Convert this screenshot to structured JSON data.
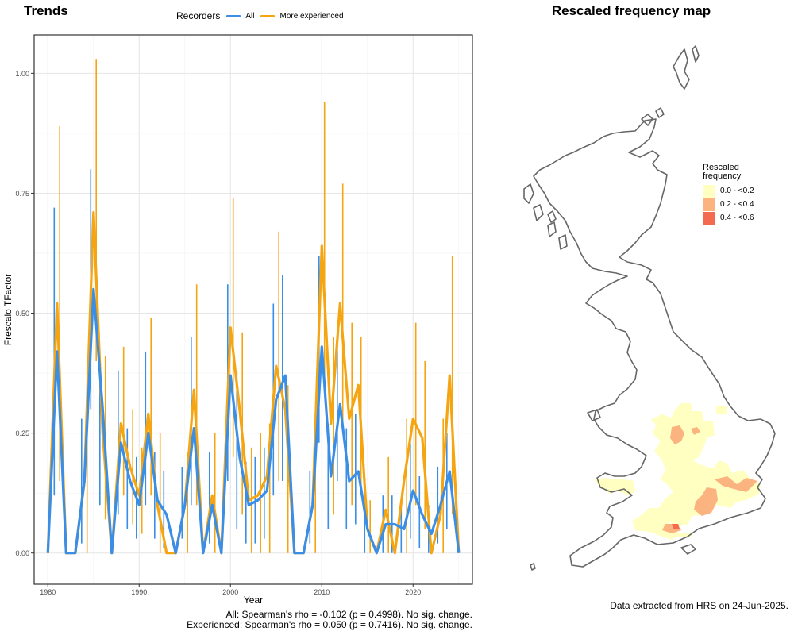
{
  "panel_title": "Trends",
  "map_title": "Rescaled frequency map",
  "legend": {
    "title": "Recorders",
    "items": [
      {
        "label": "All",
        "color": "#3a8ee6"
      },
      {
        "label": "More experienced",
        "color": "#f5a511"
      }
    ]
  },
  "chart_data": {
    "type": "line",
    "xlabel": "Year",
    "ylabel": "Frescalo TFactor",
    "xlim": [
      1978.5,
      1982.0
    ],
    "xticks": [
      1980,
      1990,
      2000,
      2010,
      2020
    ],
    "ylim": [
      -0.065,
      1.08
    ],
    "yticks": [
      0,
      0.25,
      0.5,
      0.75,
      1.0
    ],
    "ytick_labels": [
      "0.00",
      "0.25",
      "0.50",
      "0.75",
      "1.00"
    ],
    "grid": true,
    "series": [
      {
        "name": "All",
        "color": "#3a8ee6",
        "points": [
          {
            "x": 1980,
            "y": 0.0
          },
          {
            "x": 1981,
            "y": 0.42,
            "lo": 0.12,
            "hi": 0.72
          },
          {
            "x": 1982,
            "y": 0.0
          },
          {
            "x": 1983,
            "y": 0.0
          },
          {
            "x": 1984,
            "y": 0.15,
            "lo": 0.02,
            "hi": 0.28
          },
          {
            "x": 1985,
            "y": 0.55,
            "lo": 0.3,
            "hi": 0.8
          },
          {
            "x": 1986,
            "y": 0.3,
            "lo": 0.1,
            "hi": 0.41
          },
          {
            "x": 1987,
            "y": 0.0
          },
          {
            "x": 1988,
            "y": 0.23,
            "lo": 0.08,
            "hi": 0.38
          },
          {
            "x": 1989,
            "y": 0.15,
            "lo": 0.05,
            "hi": 0.26
          },
          {
            "x": 1990,
            "y": 0.1,
            "lo": 0.03,
            "hi": 0.2
          },
          {
            "x": 1991,
            "y": 0.25,
            "lo": 0.1,
            "hi": 0.42
          },
          {
            "x": 1992,
            "y": 0.11,
            "lo": 0.03,
            "hi": 0.21
          },
          {
            "x": 1993,
            "y": 0.08,
            "lo": 0.01,
            "hi": 0.17
          },
          {
            "x": 1994,
            "y": 0.0
          },
          {
            "x": 1995,
            "y": 0.1,
            "lo": 0.03,
            "hi": 0.18
          },
          {
            "x": 1996,
            "y": 0.26,
            "lo": 0.1,
            "hi": 0.45
          },
          {
            "x": 1997,
            "y": 0.0
          },
          {
            "x": 1998,
            "y": 0.1,
            "lo": 0.02,
            "hi": 0.21
          },
          {
            "x": 1999,
            "y": 0.0
          },
          {
            "x": 2000,
            "y": 0.37,
            "lo": 0.15,
            "hi": 0.56
          },
          {
            "x": 2001,
            "y": 0.2,
            "lo": 0.05,
            "hi": 0.38
          },
          {
            "x": 2002,
            "y": 0.1,
            "lo": 0.02,
            "hi": 0.19
          },
          {
            "x": 2003,
            "y": 0.11,
            "lo": 0.02,
            "hi": 0.2
          },
          {
            "x": 2004,
            "y": 0.13,
            "lo": 0.03,
            "hi": 0.22
          },
          {
            "x": 2005,
            "y": 0.32,
            "lo": 0.12,
            "hi": 0.52
          },
          {
            "x": 2006,
            "y": 0.37,
            "lo": 0.15,
            "hi": 0.58
          },
          {
            "x": 2007,
            "y": 0.0
          },
          {
            "x": 2008,
            "y": 0.0
          },
          {
            "x": 2009,
            "y": 0.1,
            "lo": 0.02,
            "hi": 0.17
          },
          {
            "x": 2010,
            "y": 0.43,
            "lo": 0.23,
            "hi": 0.62
          },
          {
            "x": 2011,
            "y": 0.16,
            "lo": 0.05,
            "hi": 0.27
          },
          {
            "x": 2012,
            "y": 0.31,
            "lo": 0.15,
            "hi": 0.47
          },
          {
            "x": 2013,
            "y": 0.15,
            "lo": 0.05,
            "hi": 0.26
          },
          {
            "x": 2014,
            "y": 0.17,
            "lo": 0.06,
            "hi": 0.29
          },
          {
            "x": 2015,
            "y": 0.05,
            "lo": 0.0,
            "hi": 0.11
          },
          {
            "x": 2016,
            "y": 0.0
          },
          {
            "x": 2017,
            "y": 0.06,
            "lo": 0.0,
            "hi": 0.12
          },
          {
            "x": 2018,
            "y": 0.06,
            "lo": 0.0,
            "hi": 0.12
          },
          {
            "x": 2019,
            "y": 0.05,
            "lo": 0.0,
            "hi": 0.11
          },
          {
            "x": 2020,
            "y": 0.13,
            "lo": 0.03,
            "hi": 0.23
          },
          {
            "x": 2021,
            "y": 0.08,
            "lo": 0.01,
            "hi": 0.16
          },
          {
            "x": 2022,
            "y": 0.04,
            "lo": 0.0,
            "hi": 0.1
          },
          {
            "x": 2023,
            "y": 0.1,
            "lo": 0.02,
            "hi": 0.18
          },
          {
            "x": 2024,
            "y": 0.17,
            "lo": 0.05,
            "hi": 0.25
          },
          {
            "x": 2025,
            "y": 0.0
          }
        ]
      },
      {
        "name": "More experienced",
        "color": "#f5a511",
        "points": [
          {
            "x": 1980,
            "y": 0.0
          },
          {
            "x": 1981,
            "y": 0.52,
            "lo": 0.15,
            "hi": 0.89
          },
          {
            "x": 1982,
            "y": 0.0
          },
          {
            "x": 1983,
            "y": 0.0
          },
          {
            "x": 1984,
            "y": 0.15,
            "lo": 0.0,
            "hi": 0.38
          },
          {
            "x": 1985,
            "y": 0.71,
            "lo": 0.4,
            "hi": 1.03
          },
          {
            "x": 1986,
            "y": 0.25,
            "lo": 0.07,
            "hi": 0.41
          },
          {
            "x": 1987,
            "y": 0.0
          },
          {
            "x": 1988,
            "y": 0.27,
            "lo": 0.12,
            "hi": 0.43
          },
          {
            "x": 1989,
            "y": 0.18,
            "lo": 0.06,
            "hi": 0.3
          },
          {
            "x": 1990,
            "y": 0.12,
            "lo": 0.04,
            "hi": 0.22
          },
          {
            "x": 1991,
            "y": 0.29,
            "lo": 0.12,
            "hi": 0.49
          },
          {
            "x": 1992,
            "y": 0.1,
            "lo": 0.0,
            "hi": 0.25
          },
          {
            "x": 1993,
            "y": 0.0
          },
          {
            "x": 1994,
            "y": 0.0
          },
          {
            "x": 1995,
            "y": 0.1,
            "lo": 0.0,
            "hi": 0.21
          },
          {
            "x": 1996,
            "y": 0.34,
            "lo": 0.1,
            "hi": 0.56
          },
          {
            "x": 1997,
            "y": 0.0
          },
          {
            "x": 1998,
            "y": 0.12,
            "lo": 0.0,
            "hi": 0.25
          },
          {
            "x": 1999,
            "y": 0.0
          },
          {
            "x": 2000,
            "y": 0.47,
            "lo": 0.2,
            "hi": 0.74
          },
          {
            "x": 2001,
            "y": 0.3,
            "lo": 0.08,
            "hi": 0.46
          },
          {
            "x": 2002,
            "y": 0.11,
            "lo": 0.0,
            "hi": 0.22
          },
          {
            "x": 2003,
            "y": 0.12,
            "lo": 0.0,
            "hi": 0.25
          },
          {
            "x": 2004,
            "y": 0.16,
            "lo": 0.0,
            "hi": 0.27
          },
          {
            "x": 2005,
            "y": 0.39,
            "lo": 0.15,
            "hi": 0.67
          },
          {
            "x": 2006,
            "y": 0.3,
            "lo": 0.0,
            "hi": 0.35
          },
          {
            "x": 2007,
            "y": 0.0
          },
          {
            "x": 2008,
            "y": 0.0
          },
          {
            "x": 2009,
            "y": 0.1,
            "lo": 0.0,
            "hi": 0.27
          },
          {
            "x": 2010,
            "y": 0.64,
            "lo": 0.34,
            "hi": 0.94
          },
          {
            "x": 2011,
            "y": 0.27,
            "lo": 0.08,
            "hi": 0.45
          },
          {
            "x": 2012,
            "y": 0.52,
            "lo": 0.27,
            "hi": 0.77
          },
          {
            "x": 2013,
            "y": 0.28,
            "lo": 0.1,
            "hi": 0.48
          },
          {
            "x": 2014,
            "y": 0.35,
            "lo": 0.12,
            "hi": 0.45
          },
          {
            "x": 2015,
            "y": 0.05,
            "lo": 0.0,
            "hi": 0.11
          },
          {
            "x": 2016,
            "y": 0.0
          },
          {
            "x": 2017,
            "y": 0.09,
            "lo": 0.0,
            "hi": 0.2
          },
          {
            "x": 2018,
            "y": 0.0
          },
          {
            "x": 2019,
            "y": 0.15,
            "lo": 0.0,
            "hi": 0.28
          },
          {
            "x": 2020,
            "y": 0.28,
            "lo": 0.1,
            "hi": 0.48
          },
          {
            "x": 2021,
            "y": 0.24,
            "lo": 0.05,
            "hi": 0.4
          },
          {
            "x": 2022,
            "y": 0.0
          },
          {
            "x": 2023,
            "y": 0.08,
            "lo": 0.0,
            "hi": 0.28
          },
          {
            "x": 2024,
            "y": 0.37,
            "lo": 0.08,
            "hi": 0.62
          },
          {
            "x": 2025,
            "y": 0.0
          }
        ]
      }
    ]
  },
  "stats": {
    "all": "All: Spearman's rho = -0.102 (p = 0.4998). No sig. change.",
    "experienced": "Experienced: Spearman's rho = 0.050 (p = 0.7416). No sig. change."
  },
  "map_legend": {
    "title_line1": "Rescaled",
    "title_line2": "frequency",
    "items": [
      {
        "label": "0.0 - <0.2",
        "color": "#ffffc2"
      },
      {
        "label": "0.2 - <0.4",
        "color": "#fbb37f"
      },
      {
        "label": "0.4 - <0.6",
        "color": "#f46a50"
      }
    ]
  },
  "extraction_note": "Data extracted from HRS on 24-Jun-2025."
}
